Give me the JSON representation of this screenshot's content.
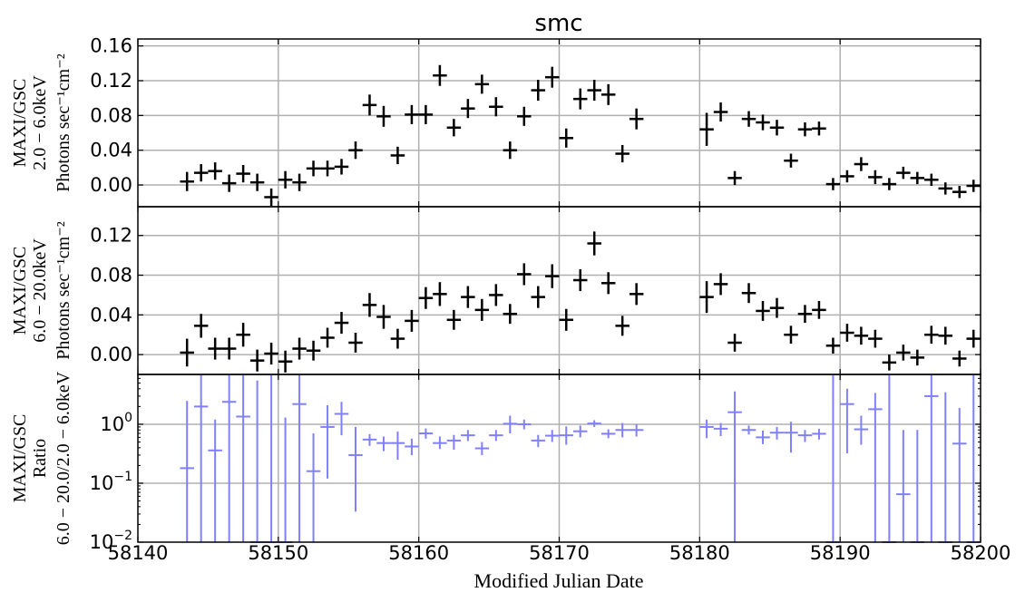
{
  "chart_data": {
    "type": "scatter",
    "title": "smc",
    "xlabel": "Modified Julian Date",
    "x_ticks": [
      "58140",
      "58150",
      "58160",
      "58170",
      "58180",
      "58190",
      "58200"
    ],
    "xlim": [
      58140,
      58200
    ],
    "grid": true,
    "panels": [
      {
        "name": "soft",
        "ylabel_lines": [
          "MAXI/GSC",
          "2.0 − 6.0keV",
          "Photons sec⁻¹cm⁻²"
        ],
        "ylim": [
          -0.025,
          0.168
        ],
        "yticks": [
          0.0,
          0.04,
          0.08,
          0.12,
          0.16
        ],
        "ytick_labels": [
          "0.00",
          "0.04",
          "0.08",
          "0.12",
          "0.16"
        ],
        "color": "#000000",
        "x": [
          58143.5,
          58144.5,
          58145.5,
          58146.5,
          58147.5,
          58148.5,
          58149.5,
          58150.5,
          58151.5,
          58152.5,
          58153.5,
          58154.5,
          58155.5,
          58156.5,
          58157.5,
          58158.5,
          58159.5,
          58160.5,
          58161.5,
          58162.5,
          58163.5,
          58164.5,
          58165.5,
          58166.5,
          58167.5,
          58168.5,
          58169.5,
          58170.5,
          58171.5,
          58172.5,
          58173.5,
          58174.5,
          58175.5,
          58180.5,
          58181.5,
          58182.5,
          58183.5,
          58184.5,
          58185.5,
          58186.5,
          58187.5,
          58188.5,
          58189.5,
          58190.5,
          58191.5,
          58192.5,
          58193.5,
          58194.5,
          58195.5,
          58196.5,
          58197.5,
          58198.5,
          58199.5
        ],
        "y": [
          0.004,
          0.014,
          0.016,
          0.002,
          0.013,
          0.003,
          -0.014,
          0.006,
          0.003,
          0.019,
          0.019,
          0.021,
          0.04,
          0.092,
          0.079,
          0.034,
          0.081,
          0.081,
          0.126,
          0.066,
          0.088,
          0.116,
          0.09,
          0.04,
          0.079,
          0.109,
          0.124,
          0.054,
          0.099,
          0.109,
          0.104,
          0.036,
          0.076,
          0.064,
          0.084,
          0.008,
          0.076,
          0.072,
          0.066,
          0.028,
          0.064,
          0.065,
          0.001,
          0.01,
          0.024,
          0.009,
          0.001,
          0.014,
          0.008,
          0.006,
          -0.004,
          -0.008,
          -0.001
        ],
        "yerr": [
          0.011,
          0.01,
          0.01,
          0.01,
          0.01,
          0.01,
          0.01,
          0.01,
          0.01,
          0.009,
          0.009,
          0.009,
          0.01,
          0.012,
          0.012,
          0.01,
          0.011,
          0.011,
          0.012,
          0.01,
          0.011,
          0.011,
          0.011,
          0.01,
          0.011,
          0.012,
          0.012,
          0.011,
          0.012,
          0.012,
          0.012,
          0.01,
          0.012,
          0.019,
          0.011,
          0.008,
          0.009,
          0.009,
          0.009,
          0.008,
          0.008,
          0.008,
          0.007,
          0.007,
          0.008,
          0.008,
          0.007,
          0.007,
          0.007,
          0.007,
          0.007,
          0.007,
          0.007
        ]
      },
      {
        "name": "hard",
        "ylabel_lines": [
          "MAXI/GSC",
          "6.0 − 20.0keV",
          "Photons sec⁻¹cm⁻²"
        ],
        "ylim": [
          -0.02,
          0.149
        ],
        "yticks": [
          0.0,
          0.04,
          0.08,
          0.12
        ],
        "ytick_labels": [
          "0.00",
          "0.04",
          "0.08",
          "0.12"
        ],
        "color": "#000000",
        "x": [
          58143.5,
          58144.5,
          58145.5,
          58146.5,
          58147.5,
          58148.5,
          58149.5,
          58150.5,
          58151.5,
          58152.5,
          58153.5,
          58154.5,
          58155.5,
          58156.5,
          58157.5,
          58158.5,
          58159.5,
          58160.5,
          58161.5,
          58162.5,
          58163.5,
          58164.5,
          58165.5,
          58166.5,
          58167.5,
          58168.5,
          58169.5,
          58170.5,
          58171.5,
          58172.5,
          58173.5,
          58174.5,
          58175.5,
          58180.5,
          58181.5,
          58182.5,
          58183.5,
          58184.5,
          58185.5,
          58186.5,
          58187.5,
          58188.5,
          58189.5,
          58190.5,
          58191.5,
          58192.5,
          58193.5,
          58194.5,
          58195.5,
          58196.5,
          58197.5,
          58198.5,
          58199.5
        ],
        "y": [
          0.002,
          0.029,
          0.006,
          0.006,
          0.02,
          -0.006,
          0.001,
          -0.007,
          0.006,
          0.004,
          0.017,
          0.032,
          0.012,
          0.05,
          0.038,
          0.016,
          0.034,
          0.057,
          0.061,
          0.035,
          0.058,
          0.045,
          0.06,
          0.041,
          0.081,
          0.058,
          0.079,
          0.035,
          0.075,
          0.112,
          0.072,
          0.029,
          0.061,
          0.058,
          0.071,
          0.012,
          0.062,
          0.044,
          0.047,
          0.02,
          0.041,
          0.045,
          0.009,
          0.022,
          0.019,
          0.016,
          -0.008,
          0.002,
          -0.003,
          0.02,
          0.019,
          -0.004,
          0.016
        ],
        "yerr": [
          0.014,
          0.012,
          0.011,
          0.011,
          0.012,
          0.011,
          0.011,
          0.011,
          0.011,
          0.01,
          0.01,
          0.011,
          0.01,
          0.012,
          0.012,
          0.01,
          0.011,
          0.011,
          0.012,
          0.01,
          0.011,
          0.011,
          0.011,
          0.01,
          0.011,
          0.011,
          0.012,
          0.011,
          0.011,
          0.012,
          0.011,
          0.01,
          0.011,
          0.016,
          0.011,
          0.009,
          0.01,
          0.01,
          0.01,
          0.009,
          0.009,
          0.009,
          0.008,
          0.009,
          0.009,
          0.009,
          0.008,
          0.008,
          0.008,
          0.009,
          0.009,
          0.008,
          0.009
        ]
      },
      {
        "name": "ratio",
        "ylabel_lines": [
          "MAXI/GSC",
          "Ratio",
          "6.0 − 20.0/2.0 − 6.0keV"
        ],
        "scale": "log",
        "ylim": [
          0.01,
          7
        ],
        "yticks": [
          0.01,
          0.1,
          1
        ],
        "ytick_labels": [
          [
            "10",
            "−2"
          ],
          [
            "10",
            "−1"
          ],
          [
            "10",
            "0"
          ]
        ],
        "color": "#8080ff",
        "x": [
          58143.5,
          58144.5,
          58145.5,
          58146.5,
          58147.5,
          58148.5,
          58149.5,
          58150.5,
          58151.5,
          58152.5,
          58153.5,
          58154.5,
          58155.5,
          58156.5,
          58157.5,
          58158.5,
          58159.5,
          58160.5,
          58161.5,
          58162.5,
          58163.5,
          58164.5,
          58165.5,
          58166.5,
          58167.5,
          58168.5,
          58169.5,
          58170.5,
          58171.5,
          58172.5,
          58173.5,
          58174.5,
          58175.5,
          58180.5,
          58181.5,
          58182.5,
          58183.5,
          58184.5,
          58185.5,
          58186.5,
          58187.5,
          58188.5,
          58189.5,
          58190.5,
          58191.5,
          58192.5,
          58193.5,
          58194.5,
          58195.5,
          58196.5,
          58197.5,
          58198.5,
          58199.5
        ],
        "y": [
          0.18,
          2.0,
          0.36,
          2.4,
          1.35,
          0.01,
          0.01,
          0.01,
          2.2,
          0.16,
          0.9,
          1.5,
          0.3,
          0.55,
          0.48,
          0.48,
          0.42,
          0.7,
          0.48,
          0.53,
          0.65,
          0.39,
          0.65,
          1.02,
          1.0,
          0.53,
          0.64,
          0.65,
          0.76,
          1.03,
          0.69,
          0.8,
          0.8,
          0.9,
          0.84,
          1.6,
          0.8,
          0.6,
          0.72,
          0.72,
          0.65,
          0.69,
          0.01,
          2.2,
          0.82,
          1.8,
          0.01,
          0.065,
          0.01,
          3.0,
          0.01,
          0.47,
          0.01
        ],
        "ylow": [
          0.01,
          0.01,
          0.01,
          0.01,
          0.01,
          0.01,
          0.01,
          0.01,
          0.01,
          0.01,
          0.12,
          0.65,
          0.033,
          0.43,
          0.35,
          0.25,
          0.3,
          0.57,
          0.38,
          0.37,
          0.52,
          0.3,
          0.52,
          0.7,
          0.82,
          0.41,
          0.5,
          0.45,
          0.6,
          0.9,
          0.58,
          0.6,
          0.62,
          0.58,
          0.63,
          0.01,
          0.67,
          0.46,
          0.55,
          0.33,
          0.5,
          0.55,
          0.01,
          0.32,
          0.45,
          0.01,
          0.01,
          0.01,
          0.01,
          0.01,
          0.01,
          0.01,
          0.01
        ],
        "yhigh": [
          2.5,
          7,
          1.2,
          7,
          7,
          5.5,
          7,
          1.3,
          7,
          0.7,
          2.1,
          2.4,
          0.9,
          0.68,
          0.62,
          0.75,
          0.57,
          0.85,
          0.62,
          0.66,
          0.8,
          0.5,
          0.8,
          1.4,
          1.2,
          0.66,
          0.8,
          0.92,
          0.95,
          1.17,
          0.82,
          1.05,
          1.0,
          1.2,
          1.05,
          3.6,
          0.95,
          0.78,
          0.9,
          1.1,
          0.8,
          0.84,
          7,
          4.0,
          1.4,
          3.4,
          7,
          0.8,
          0.8,
          7,
          3.5,
          1.9,
          7
        ]
      }
    ]
  }
}
